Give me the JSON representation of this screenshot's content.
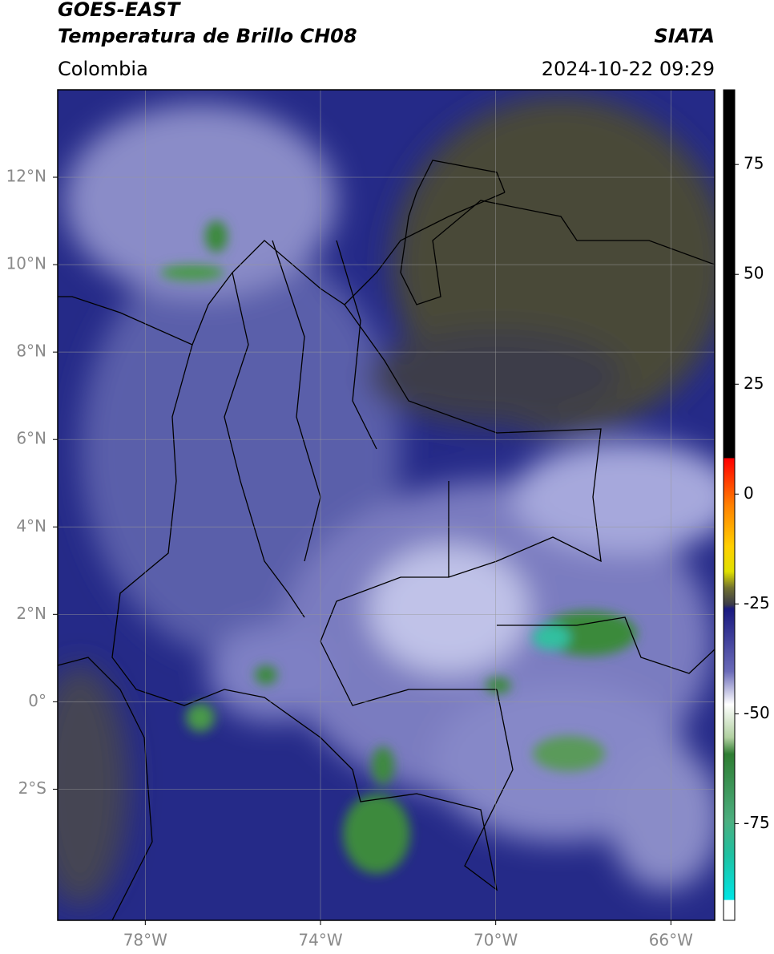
{
  "header": {
    "title": "GOES-EAST",
    "subtitle": "Temperatura de Brillo CH08",
    "region": "Colombia",
    "source": "SIATA",
    "datetime": "2024-10-22 09:29"
  },
  "map": {
    "xlim": [
      -80,
      -65
    ],
    "ylim": [
      -5,
      14
    ],
    "xticks": [
      {
        "value": -78,
        "label": "78°W"
      },
      {
        "value": -74,
        "label": "74°W"
      },
      {
        "value": -70,
        "label": "70°W"
      },
      {
        "value": -66,
        "label": "66°W"
      }
    ],
    "yticks": [
      {
        "value": 12,
        "label": "12°N"
      },
      {
        "value": 10,
        "label": "10°N"
      },
      {
        "value": 8,
        "label": "8°N"
      },
      {
        "value": 6,
        "label": "6°N"
      },
      {
        "value": 4,
        "label": "4°N"
      },
      {
        "value": 2,
        "label": "2°N"
      },
      {
        "value": 0,
        "label": "0°"
      },
      {
        "value": -2,
        "label": "2°S"
      }
    ],
    "grid": true
  },
  "colorbar": {
    "lim": [
      -97,
      92
    ],
    "ticks": [
      75,
      50,
      25,
      0,
      -25,
      -50,
      -75
    ]
  }
}
